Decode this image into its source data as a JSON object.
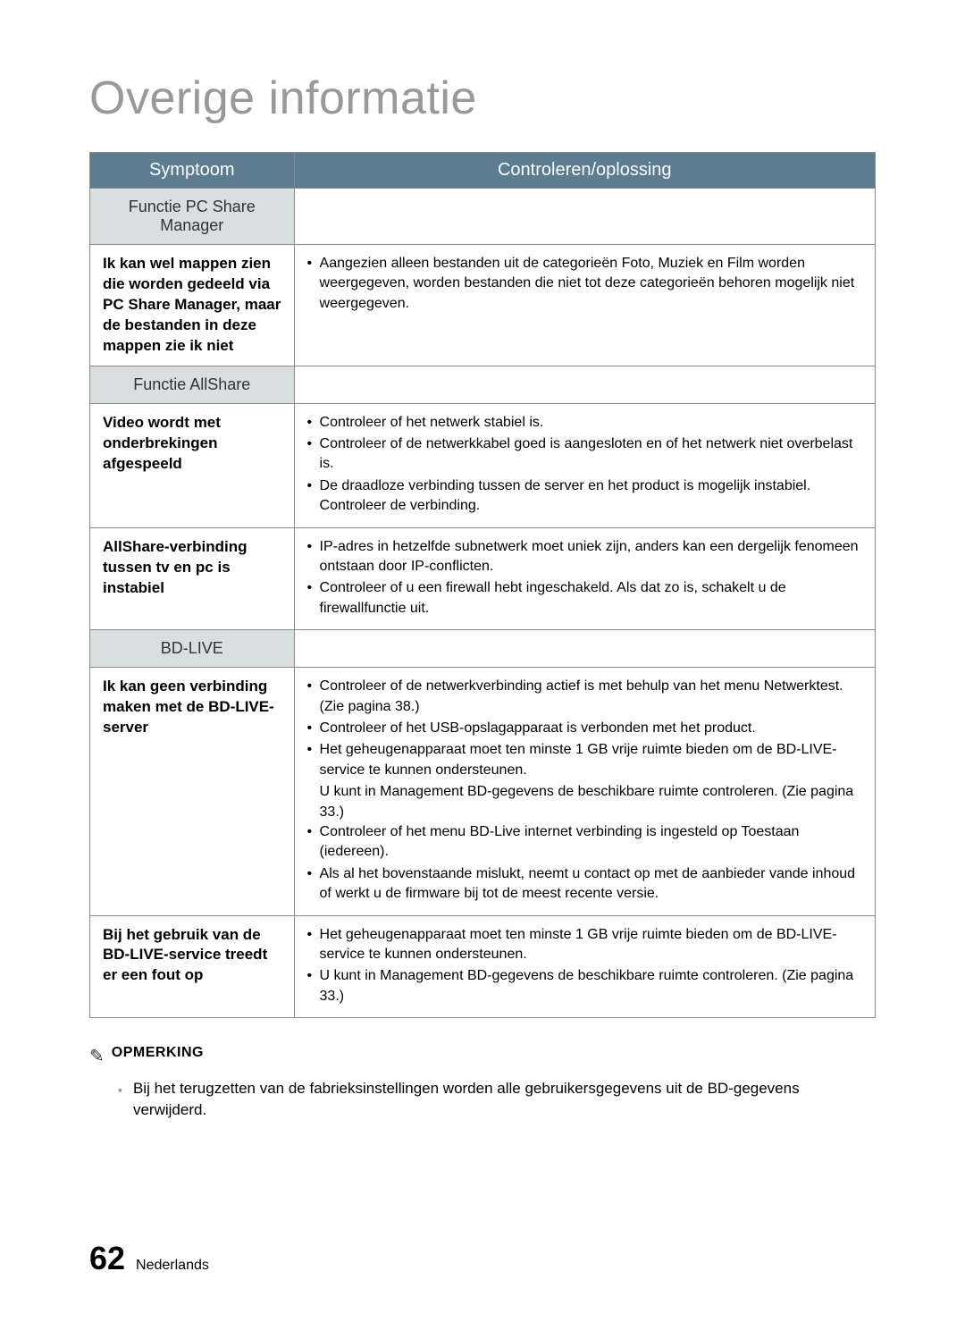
{
  "title": "Overige informatie",
  "table": {
    "headers": {
      "symptom": "Symptoom",
      "solution": "Controleren/oplossing"
    },
    "sections": [
      {
        "section_title": "Functie PC Share Manager",
        "rows": [
          {
            "symptom": "Ik kan wel mappen zien die worden gedeeld via PC Share Manager, maar de bestanden in deze mappen zie ik niet",
            "solutions": [
              "Aangezien alleen bestanden uit de categorieën Foto, Muziek en Film worden weergegeven, worden bestanden die niet tot deze categorieën behoren mogelijk niet weergegeven."
            ]
          }
        ]
      },
      {
        "section_title": "Functie AllShare",
        "rows": [
          {
            "symptom": "Video wordt met onderbrekingen afgespeeld",
            "solutions": [
              "Controleer of het netwerk stabiel is.",
              "Controleer of de netwerkkabel goed is aangesloten en of het netwerk niet overbelast is.",
              "De draadloze verbinding tussen de server en het product is mogelijk instabiel. Controleer de verbinding."
            ]
          },
          {
            "symptom": "AllShare-verbinding tussen tv en pc is instabiel",
            "solutions": [
              "IP-adres in hetzelfde subnetwerk moet uniek zijn, anders kan een dergelijk fenomeen ontstaan door IP-conflicten.",
              "Controleer of u een firewall hebt ingeschakeld. Als dat zo is, schakelt u de firewallfunctie uit."
            ]
          }
        ]
      },
      {
        "section_title": "BD-LIVE",
        "rows": [
          {
            "symptom": "Ik kan geen verbinding maken met de BD-LIVE-server",
            "solutions": [
              "Controleer of de netwerkverbinding actief is met behulp van het menu Netwerktest. (Zie pagina 38.)",
              "Controleer of het USB-opslagapparaat is verbonden met het product.",
              "Het geheugenapparaat moet ten minste 1 GB vrije ruimte bieden om de BD-LIVE-service te kunnen ondersteunen.",
              "__INDENT__U kunt in Management BD-gegevens de beschikbare ruimte controleren. (Zie pagina 33.)",
              "Controleer of het menu BD-Live internet verbinding is ingesteld op Toestaan (iedereen).",
              "Als al het bovenstaande mislukt, neemt u contact op met de aanbieder vande inhoud of werkt u de firmware bij tot de meest recente versie."
            ]
          },
          {
            "symptom": "Bij het gebruik van de BD-LIVE-service treedt er een fout op",
            "solutions": [
              "Het geheugenapparaat moet ten minste 1 GB vrije ruimte bieden om de BD-LIVE-service te kunnen ondersteunen.",
              "U kunt in Management BD-gegevens de beschikbare ruimte controleren. (Zie pagina 33.)"
            ]
          }
        ]
      }
    ]
  },
  "note": {
    "label": "OPMERKING",
    "text": "Bij het terugzetten van de fabrieksinstellingen worden alle gebruikersgegevens uit de BD-gegevens verwijderd."
  },
  "footer": {
    "page_number": "62",
    "language": "Nederlands"
  }
}
